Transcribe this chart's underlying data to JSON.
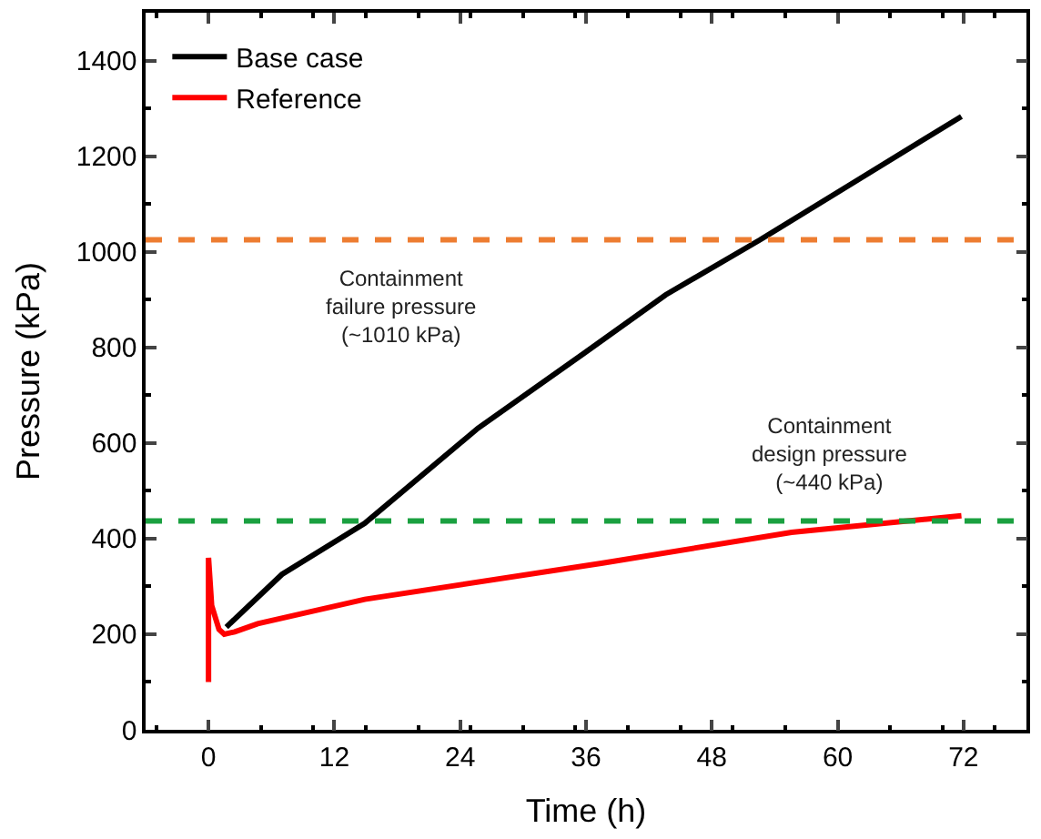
{
  "chart_data": {
    "type": "line",
    "xlabel": "Time (h)",
    "ylabel": "Pressure (kPa)",
    "xlim": [
      -6,
      78
    ],
    "xticks": [
      0,
      12,
      24,
      36,
      48,
      60,
      72
    ],
    "ylim": [
      0,
      1500
    ],
    "yticks": [
      0,
      200,
      400,
      600,
      800,
      1000,
      1200,
      1400
    ],
    "legend": "top left",
    "line_style": "solid",
    "marker": "none",
    "series": [
      {
        "name": "Base case",
        "color": "#000000",
        "x": [
          1.7,
          7,
          14.9,
          25.7,
          35.9,
          43.6,
          52.6,
          61.6,
          71.8
        ],
        "values": [
          215,
          325,
          432,
          631,
          789,
          910,
          1025,
          1146,
          1283
        ]
      },
      {
        "name": "Reference",
        "color": "#ff0000",
        "x": [
          0,
          0,
          0.3,
          1,
          1.5,
          2.5,
          4.7,
          14.9,
          37.6,
          55.6,
          71.8
        ],
        "values": [
          100,
          360,
          260,
          210,
          200,
          205,
          222,
          273,
          349,
          413,
          448
        ]
      }
    ],
    "ref_lines": [
      {
        "axis": "y",
        "value": 1025,
        "color": "#ed7d31",
        "line_style": "dashed",
        "label": "Containment\nfailure pressure\n(~1010 kPa)"
      },
      {
        "axis": "y",
        "value": 437,
        "color": "#1aa040",
        "line_style": "dashed",
        "label": "Containment\ndesign pressure\n(~440 kPa)"
      }
    ]
  }
}
